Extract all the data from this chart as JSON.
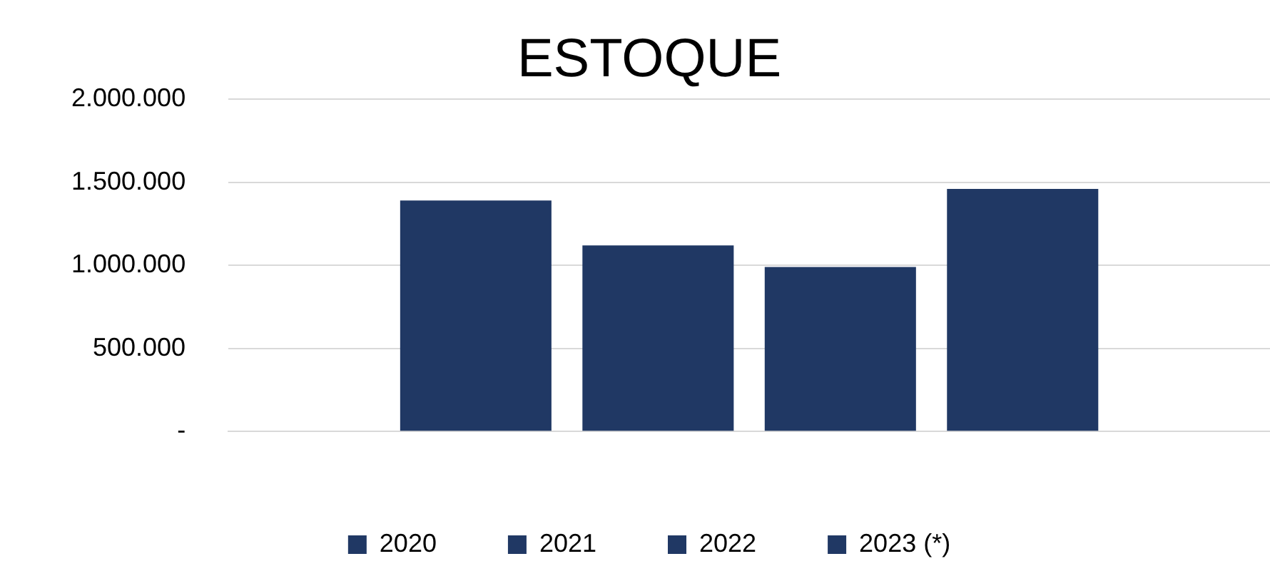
{
  "chart_data": {
    "type": "bar",
    "title": "ESTOQUE",
    "categories": [
      null
    ],
    "series": [
      {
        "name": "2020",
        "color": "#203864",
        "values": [
          1390000
        ]
      },
      {
        "name": "2021",
        "color": "#203864",
        "values": [
          1120000
        ]
      },
      {
        "name": "2022",
        "color": "#203864",
        "values": [
          990000
        ]
      },
      {
        "name": "2023 (*)",
        "color": "#203864",
        "values": [
          1460000
        ]
      }
    ],
    "ylim": [
      0,
      2000000
    ],
    "yticks": [
      {
        "value": 0,
        "label": "-"
      },
      {
        "value": 500000,
        "label": "500.000"
      },
      {
        "value": 1000000,
        "label": "1.000.000"
      },
      {
        "value": 1500000,
        "label": "1.500.000"
      },
      {
        "value": 2000000,
        "label": "2.000.000"
      }
    ],
    "grid": "y",
    "legend": "bottom"
  }
}
